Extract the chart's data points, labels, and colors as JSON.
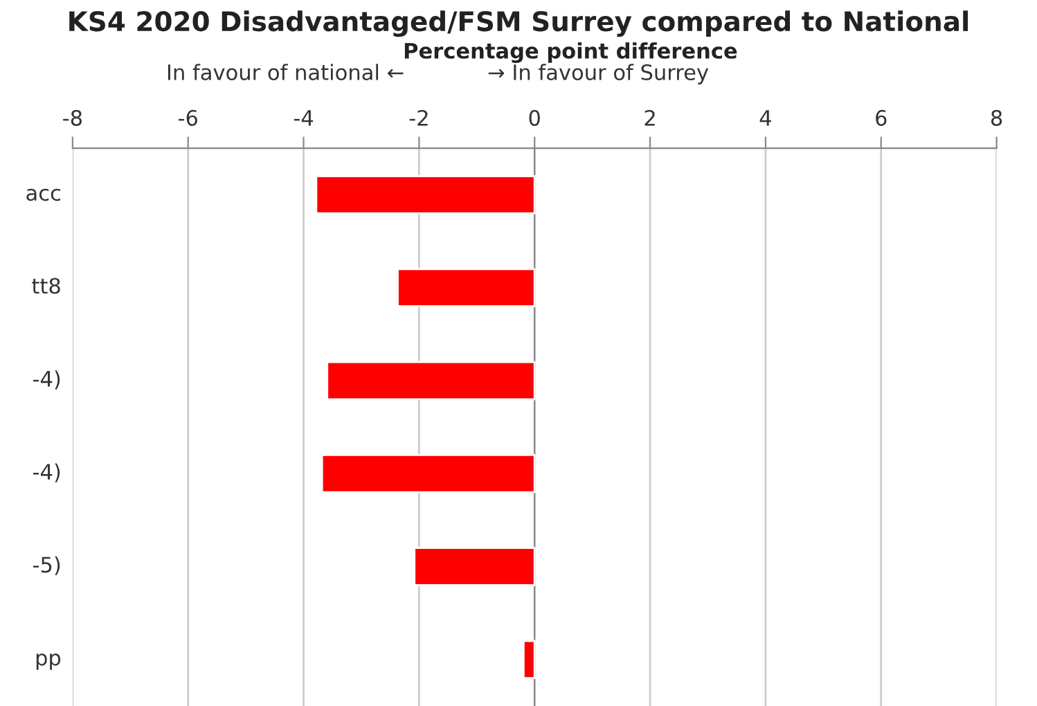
{
  "chart_data": {
    "type": "bar",
    "orientation": "horizontal",
    "title": "KS4 2020 Disadvantaged/FSM Surrey compared to National",
    "subtitle": "Percentage point difference",
    "annotations": [
      "In favour of national ←",
      "→ In favour of Surrey"
    ],
    "categories": [
      "acc",
      "tt8",
      "-4)",
      "-4)",
      "-5)",
      "pp"
    ],
    "values": [
      -3.78,
      -2.37,
      -3.59,
      -3.68,
      -2.08,
      -0.19
    ],
    "color": "#ff0000",
    "xlim": [
      -8,
      8
    ],
    "xticks": [
      -8,
      -6,
      -4,
      -2,
      0,
      2,
      4,
      6,
      8
    ],
    "grid": "x"
  }
}
